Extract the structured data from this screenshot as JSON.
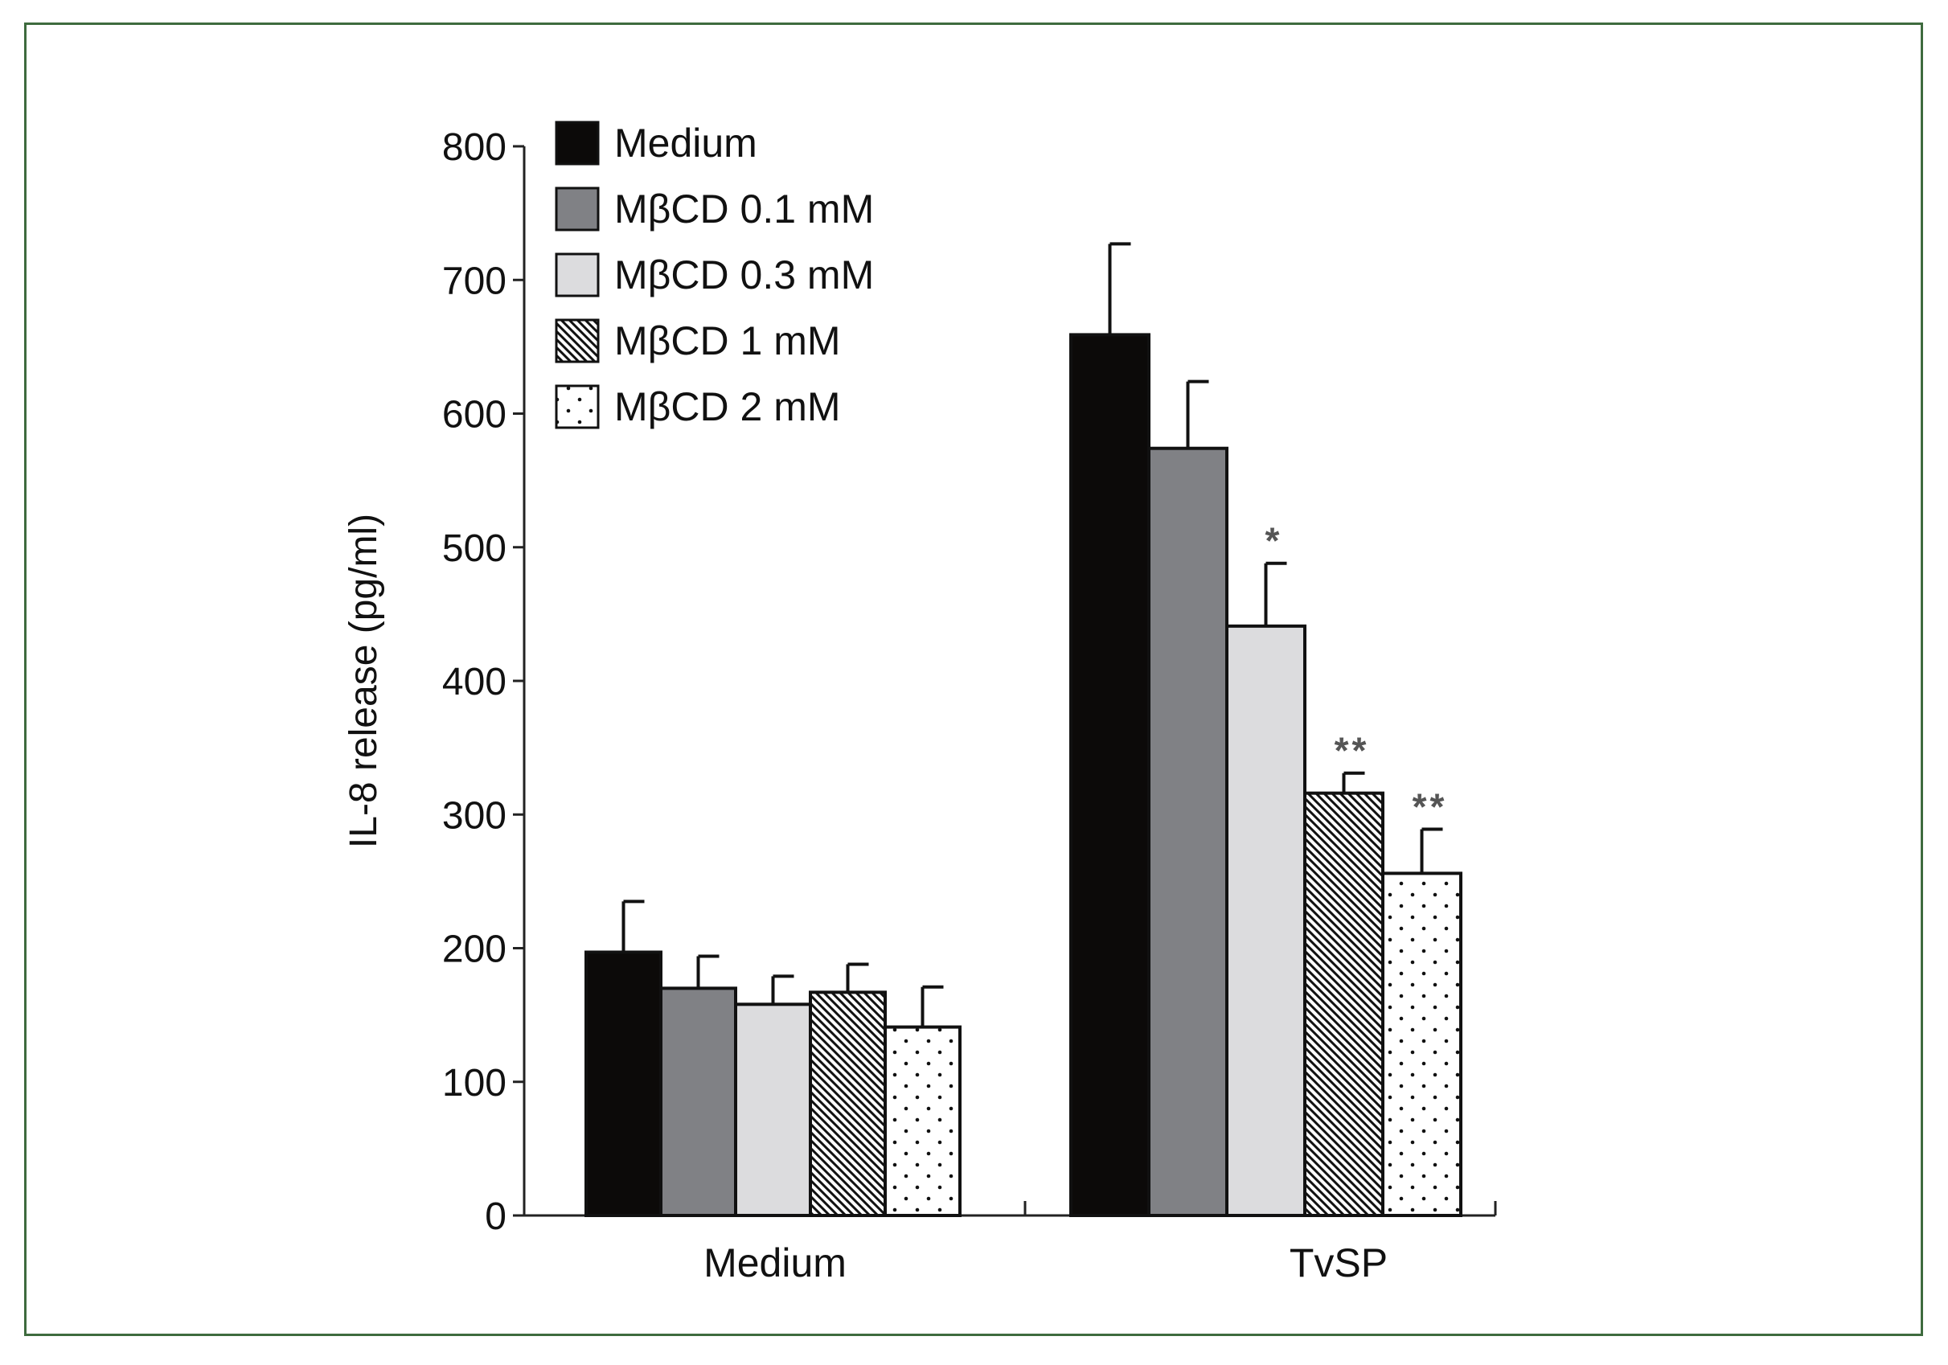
{
  "chart_data": {
    "type": "bar",
    "title": "",
    "xlabel": "",
    "ylabel": "IL-8 release (pg/ml)",
    "ylim": [
      0,
      800
    ],
    "yticks": [
      0,
      100,
      200,
      300,
      400,
      500,
      600,
      700,
      800
    ],
    "categories": [
      "Medium",
      "TvSP"
    ],
    "legend_position": "top-left",
    "series": [
      {
        "name": "Medium",
        "key": "medium",
        "fill": "#0c0a09",
        "pattern": "solid",
        "values": [
          197,
          659
        ],
        "errors": [
          38,
          68
        ],
        "annotations": [
          "",
          ""
        ]
      },
      {
        "name": "MβCD 0.1 mM",
        "key": "c01",
        "fill": "#808185",
        "pattern": "solid",
        "values": [
          170,
          574
        ],
        "errors": [
          24,
          50
        ],
        "annotations": [
          "",
          ""
        ]
      },
      {
        "name": "MβCD 0.3 mM",
        "key": "c03",
        "fill": "#dcdcde",
        "pattern": "solid",
        "values": [
          158,
          441
        ],
        "errors": [
          21,
          47
        ],
        "annotations": [
          "",
          "*"
        ]
      },
      {
        "name": "MβCD 1 mM",
        "key": "c1",
        "fill": "#ffffff",
        "pattern": "diagonal",
        "values": [
          167,
          316
        ],
        "errors": [
          21,
          15
        ],
        "annotations": [
          "",
          "**"
        ]
      },
      {
        "name": "MβCD 2 mM",
        "key": "c2",
        "fill": "#ffffff",
        "pattern": "dots",
        "values": [
          141,
          256
        ],
        "errors": [
          30,
          33
        ],
        "annotations": [
          "",
          "**"
        ]
      }
    ]
  }
}
